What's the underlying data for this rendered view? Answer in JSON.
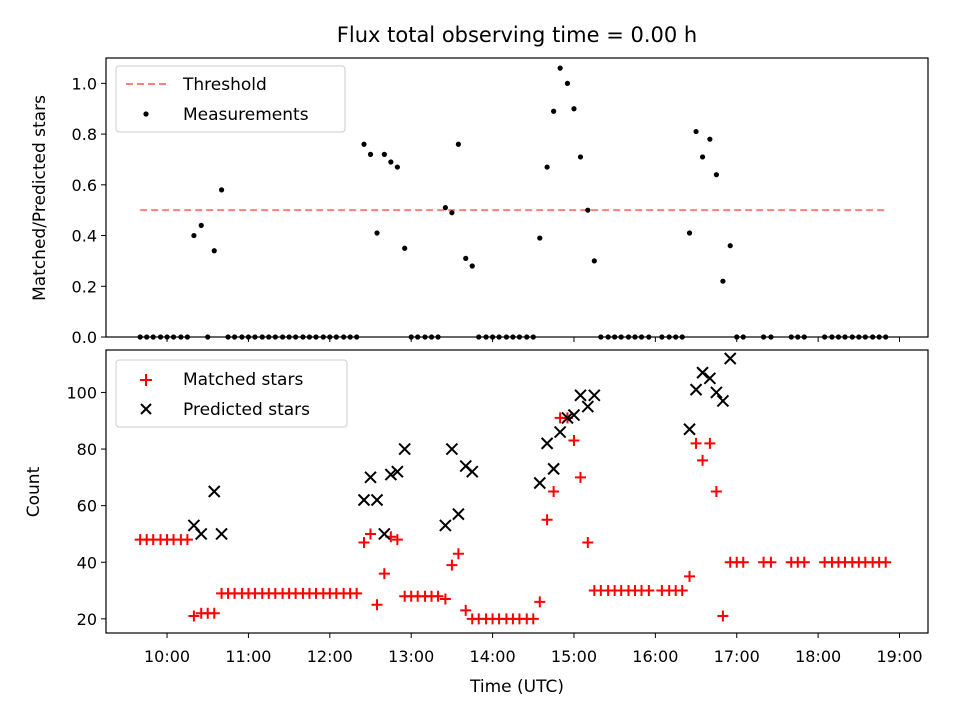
{
  "chart_data": [
    {
      "type": "scatter",
      "title": "Flux total observing time = 0.00 h",
      "xlabel": "",
      "ylabel": "Matched/Predicted stars",
      "xlim": [
        9.25,
        19.35
      ],
      "ylim": [
        0.0,
        1.1
      ],
      "yticks": [
        "0.0",
        "0.2",
        "0.4",
        "0.6",
        "0.8",
        "1.0"
      ],
      "grid": false,
      "legend": "top-left",
      "threshold": {
        "name": "Threshold",
        "y": 0.5,
        "x_range": [
          9.67,
          18.83
        ],
        "color": "#ff7f7f"
      },
      "series": [
        {
          "name": "Measurements",
          "color": "#000000",
          "marker": "dot",
          "x": [
            9.67,
            9.75,
            9.83,
            9.92,
            10.0,
            10.08,
            10.17,
            10.25,
            10.33,
            10.42,
            10.5,
            10.58,
            10.67,
            10.75,
            10.83,
            10.92,
            11.0,
            11.08,
            11.17,
            11.25,
            11.33,
            11.42,
            11.5,
            11.58,
            11.67,
            11.75,
            11.83,
            11.92,
            12.0,
            12.08,
            12.17,
            12.25,
            12.33,
            12.42,
            12.5,
            12.58,
            12.67,
            12.75,
            12.83,
            12.92,
            13.0,
            13.08,
            13.17,
            13.25,
            13.33,
            13.42,
            13.5,
            13.58,
            13.67,
            13.75,
            13.83,
            13.92,
            14.0,
            14.08,
            14.17,
            14.25,
            14.33,
            14.42,
            14.5,
            14.58,
            14.67,
            14.75,
            14.83,
            14.92,
            15.0,
            15.08,
            15.17,
            15.25,
            15.33,
            15.42,
            15.5,
            15.58,
            15.67,
            15.75,
            15.83,
            15.92,
            16.08,
            16.17,
            16.25,
            16.33,
            16.42,
            16.5,
            16.58,
            16.67,
            16.75,
            16.83,
            16.92,
            17.0,
            17.08,
            17.33,
            17.42,
            17.67,
            17.75,
            17.83,
            18.08,
            18.17,
            18.25,
            18.33,
            18.42,
            18.5,
            18.58,
            18.67,
            18.75,
            18.83
          ],
          "y": [
            0,
            0,
            0,
            0,
            0,
            0,
            0,
            0,
            0.4,
            0.44,
            0,
            0.34,
            0.58,
            0,
            0,
            0,
            0,
            0,
            0,
            0,
            0,
            0,
            0,
            0,
            0,
            0,
            0,
            0,
            0,
            0,
            0,
            0,
            0,
            0.76,
            0.72,
            0.41,
            0.72,
            0.69,
            0.67,
            0.35,
            0,
            0,
            0,
            0,
            0,
            0.51,
            0.49,
            0.76,
            0.31,
            0.28,
            0,
            0,
            0,
            0,
            0,
            0,
            0,
            0,
            0,
            0.39,
            0.67,
            0.89,
            1.06,
            1.0,
            0.9,
            0.71,
            0.5,
            0.3,
            0,
            0,
            0,
            0,
            0,
            0,
            0,
            0,
            0,
            0,
            0,
            0,
            0.41,
            0.81,
            0.71,
            0.78,
            0.64,
            0.22,
            0.36,
            0,
            0,
            0,
            0,
            0,
            0,
            0,
            0,
            0,
            0,
            0,
            0,
            0,
            0,
            0,
            0,
            0
          ]
        }
      ]
    },
    {
      "type": "scatter",
      "title": "",
      "xlabel": "Time (UTC)",
      "ylabel": "Count",
      "xlim": [
        9.25,
        19.35
      ],
      "ylim": [
        15,
        115
      ],
      "yticks": [
        "20",
        "40",
        "60",
        "80",
        "100"
      ],
      "xticks": [
        "10:00",
        "11:00",
        "12:00",
        "13:00",
        "14:00",
        "15:00",
        "16:00",
        "17:00",
        "18:00",
        "19:00"
      ],
      "grid": false,
      "legend": "top-left",
      "series": [
        {
          "name": "Matched stars",
          "color": "#ff0000",
          "marker": "plus",
          "x": [
            9.67,
            9.75,
            9.83,
            9.92,
            10.0,
            10.08,
            10.17,
            10.25,
            10.33,
            10.42,
            10.5,
            10.58,
            10.67,
            10.75,
            10.83,
            10.92,
            11.0,
            11.08,
            11.17,
            11.25,
            11.33,
            11.42,
            11.5,
            11.58,
            11.67,
            11.75,
            11.83,
            11.92,
            12.0,
            12.08,
            12.17,
            12.25,
            12.33,
            12.42,
            12.5,
            12.58,
            12.67,
            12.75,
            12.83,
            12.92,
            13.0,
            13.08,
            13.17,
            13.25,
            13.33,
            13.42,
            13.5,
            13.58,
            13.67,
            13.75,
            13.83,
            13.92,
            14.0,
            14.08,
            14.17,
            14.25,
            14.33,
            14.42,
            14.5,
            14.58,
            14.67,
            14.75,
            14.83,
            14.92,
            15.0,
            15.08,
            15.17,
            15.25,
            15.33,
            15.42,
            15.5,
            15.58,
            15.67,
            15.75,
            15.83,
            15.92,
            16.08,
            16.17,
            16.25,
            16.33,
            16.42,
            16.5,
            16.58,
            16.67,
            16.75,
            16.83,
            16.92,
            17.0,
            17.08,
            17.33,
            17.42,
            17.67,
            17.75,
            17.83,
            18.08,
            18.17,
            18.25,
            18.33,
            18.42,
            18.5,
            18.58,
            18.67,
            18.75,
            18.83
          ],
          "y": [
            48,
            48,
            48,
            48,
            48,
            48,
            48,
            48,
            21,
            22,
            22,
            22,
            29,
            29,
            29,
            29,
            29,
            29,
            29,
            29,
            29,
            29,
            29,
            29,
            29,
            29,
            29,
            29,
            29,
            29,
            29,
            29,
            29,
            47,
            50,
            25,
            36,
            49,
            48,
            28,
            28,
            28,
            28,
            28,
            28,
            27,
            39,
            43,
            23,
            20,
            20,
            20,
            20,
            20,
            20,
            20,
            20,
            20,
            20,
            26,
            55,
            65,
            91,
            91,
            83,
            70,
            47,
            30,
            30,
            30,
            30,
            30,
            30,
            30,
            30,
            30,
            30,
            30,
            30,
            30,
            35,
            82,
            76,
            82,
            65,
            21,
            40,
            40,
            40,
            40,
            40,
            40,
            40,
            40,
            40,
            40,
            40,
            40,
            40,
            40,
            40,
            40,
            40,
            40
          ]
        },
        {
          "name": "Predicted stars",
          "color": "#000000",
          "marker": "x",
          "x": [
            10.33,
            10.42,
            10.58,
            10.67,
            12.42,
            12.5,
            12.58,
            12.67,
            12.75,
            12.83,
            12.92,
            13.42,
            13.5,
            13.58,
            13.67,
            13.75,
            14.58,
            14.67,
            14.75,
            14.83,
            14.92,
            15.0,
            15.08,
            15.17,
            15.25,
            16.42,
            16.5,
            16.58,
            16.67,
            16.75,
            16.83,
            16.92
          ],
          "y": [
            53,
            50,
            65,
            50,
            62,
            70,
            62,
            50,
            71,
            72,
            80,
            53,
            80,
            57,
            74,
            72,
            68,
            82,
            73,
            86,
            91,
            92,
            99,
            95,
            99,
            87,
            101,
            107,
            105,
            100,
            97,
            112
          ]
        }
      ]
    }
  ]
}
